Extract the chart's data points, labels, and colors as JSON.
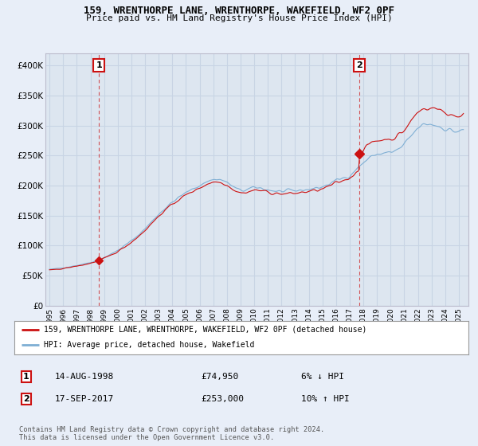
{
  "title": "159, WRENTHORPE LANE, WRENTHORPE, WAKEFIELD, WF2 0PF",
  "subtitle": "Price paid vs. HM Land Registry's House Price Index (HPI)",
  "legend_line1": "159, WRENTHORPE LANE, WRENTHORPE, WAKEFIELD, WF2 0PF (detached house)",
  "legend_line2": "HPI: Average price, detached house, Wakefield",
  "annotation1_label": "1",
  "annotation1_date": "14-AUG-1998",
  "annotation1_price": "£74,950",
  "annotation1_hpi": "6% ↓ HPI",
  "annotation1_year": 1998.62,
  "annotation1_value": 74950,
  "annotation2_label": "2",
  "annotation2_date": "17-SEP-2017",
  "annotation2_price": "£253,000",
  "annotation2_hpi": "10% ↑ HPI",
  "annotation2_year": 2017.71,
  "annotation2_value": 253000,
  "hpi_color": "#7fafd4",
  "price_color": "#cc1111",
  "background_color": "#e8eef8",
  "plot_bg_color": "#dde6f0",
  "grid_color": "#c8d4e4",
  "ylim": [
    0,
    420000
  ],
  "xlim_start": 1995.0,
  "xlim_end": 2025.5,
  "copyright_text": "Contains HM Land Registry data © Crown copyright and database right 2024.\nThis data is licensed under the Open Government Licence v3.0."
}
